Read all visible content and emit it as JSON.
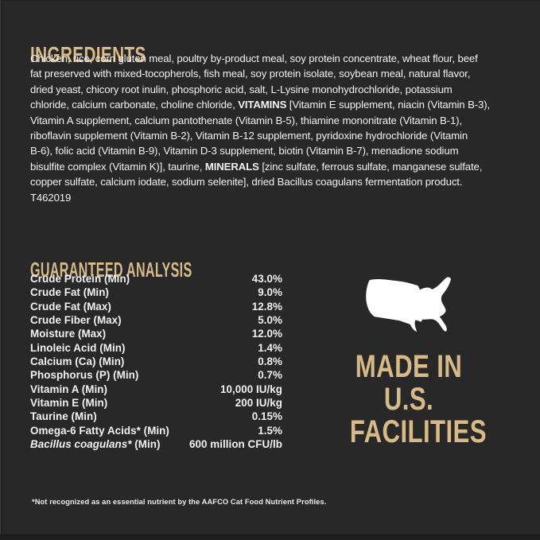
{
  "colors": {
    "background": "#282828",
    "accent": "#d7ba88",
    "text": "#f2f2f2",
    "map_white": "#ffffff",
    "bottom_strip": "#1e1e1e"
  },
  "ingredients": {
    "heading": "INGREDIENTS",
    "lines": [
      [
        {
          "t": "Chicken, rice, corn gluten meal, poultry by-product meal, soy protein concentrate, wheat flour, beef"
        }
      ],
      [
        {
          "t": "fat preserved with mixed-tocopherols, fish meal, soy protein isolate, soybean meal, natural flavor,"
        }
      ],
      [
        {
          "t": "dried yeast, chicory root inulin, phosphoric acid, salt, L-Lysine monohydrochloride, potassium"
        }
      ],
      [
        {
          "t": "chloride, calcium carbonate, choline chloride, "
        },
        {
          "t": "VITAMINS",
          "b": true
        },
        {
          "t": " [Vitamin E supplement, niacin (Vitamin B-3),"
        }
      ],
      [
        {
          "t": "Vitamin A supplement, calcium pantothenate (Vitamin B-5), thiamine mononitrate (Vitamin B-1),"
        }
      ],
      [
        {
          "t": "riboflavin supplement (Vitamin B-2), Vitamin B-12 supplement, pyridoxine hydrochloride (Vitamin"
        }
      ],
      [
        {
          "t": "B-6), folic acid (Vitamin B-9), Vitamin D-3 supplement, biotin (Vitamin B-7), menadione sodium"
        }
      ],
      [
        {
          "t": "bisulfite complex (Vitamin K)], taurine, "
        },
        {
          "t": "MINERALS",
          "b": true
        },
        {
          "t": " [zinc sulfate, ferrous sulfate, manganese sulfate,"
        }
      ],
      [
        {
          "t": "copper sulfate, calcium iodate, sodium selenite], dried Bacillus coagulans fermentation product."
        }
      ],
      [
        {
          "t": "T462019"
        }
      ]
    ]
  },
  "guaranteed_analysis": {
    "heading": "GUARANTEED ANALYSIS",
    "rows": [
      {
        "label": [
          {
            "t": "Crude Protein (Min)"
          }
        ],
        "value": "43.0%"
      },
      {
        "label": [
          {
            "t": "Crude Fat (Min)"
          }
        ],
        "value": "9.0%"
      },
      {
        "label": [
          {
            "t": "Crude Fat (Max)"
          }
        ],
        "value": "12.8%"
      },
      {
        "label": [
          {
            "t": "Crude Fiber (Max)"
          }
        ],
        "value": "5.0%"
      },
      {
        "label": [
          {
            "t": "Moisture (Max)"
          }
        ],
        "value": "12.0%"
      },
      {
        "label": [
          {
            "t": "Linoleic Acid (Min)"
          }
        ],
        "value": "1.4%"
      },
      {
        "label": [
          {
            "t": "Calcium (Ca) (Min)"
          }
        ],
        "value": "0.8%"
      },
      {
        "label": [
          {
            "t": "Phosphorus (P) (Min)"
          }
        ],
        "value": "0.7%"
      },
      {
        "label": [
          {
            "t": "Vitamin A (Min)"
          }
        ],
        "value": "10,000 IU/kg"
      },
      {
        "label": [
          {
            "t": "Vitamin E (Min)"
          }
        ],
        "value": "200 IU/kg"
      },
      {
        "label": [
          {
            "t": "Taurine (Min)"
          }
        ],
        "value": "0.15%"
      },
      {
        "label": [
          {
            "t": "Omega-6 Fatty Acids* (Min)"
          }
        ],
        "value": "1.5%"
      },
      {
        "label": [
          {
            "t": "Bacillus coagulans*",
            "i": true
          },
          {
            "t": " (Min)"
          }
        ],
        "value": "600 million CFU/lb"
      }
    ]
  },
  "made_in": {
    "map_icon": "usa-map-icon",
    "lines": [
      "MADE IN",
      "U.S.",
      "FACILITIES"
    ]
  },
  "footnote": "*Not recognized as an essential nutrient by the AAFCO Cat Food Nutrient Profiles."
}
